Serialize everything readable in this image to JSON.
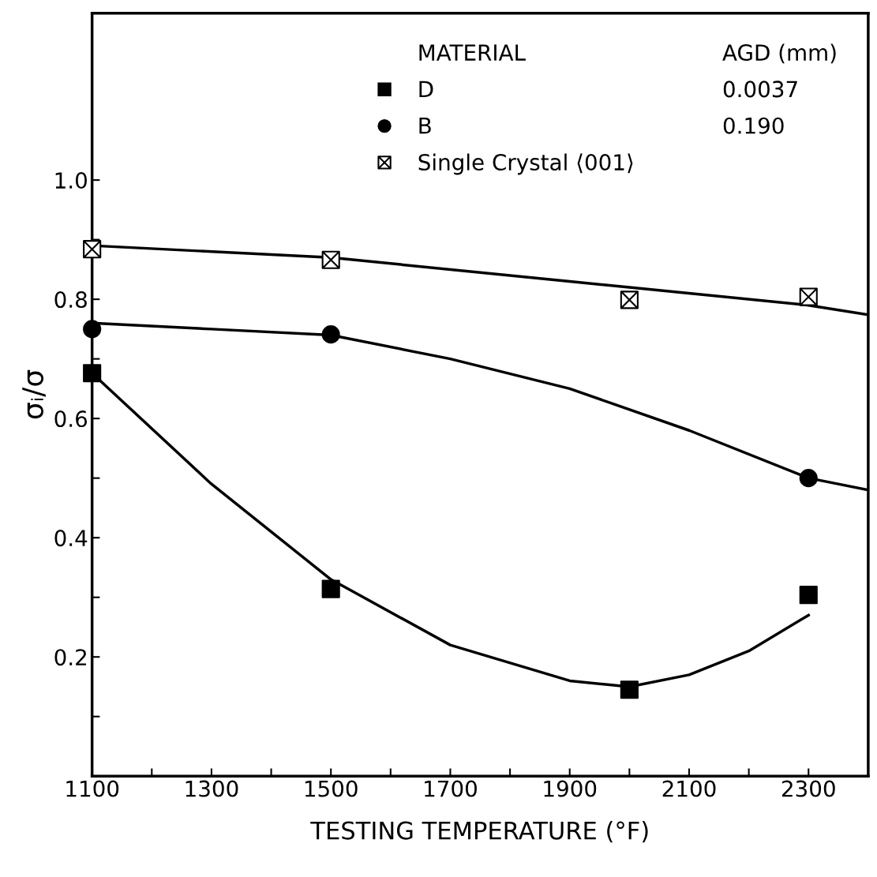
{
  "chart_data": {
    "type": "scatter",
    "xlabel": "TESTING TEMPERATURE (°F)",
    "ylabel": "σᵢ/σ",
    "legend_title": "MATERIAL",
    "annotations": [
      "AGD (mm)",
      "0.0037",
      "0.190"
    ],
    "xlim": [
      1100,
      2400
    ],
    "ylim": [
      0,
      1.28
    ],
    "xticks": [
      1100,
      {
        "value": 1200,
        "label": null
      },
      1300,
      {
        "value": 1400,
        "label": null
      },
      1500,
      {
        "value": 1600,
        "label": null
      },
      1700,
      {
        "value": 1800,
        "label": null
      },
      1900,
      {
        "value": 2000,
        "label": null
      },
      2100,
      {
        "value": 2200,
        "label": null
      },
      2300
    ],
    "yticks": [
      {
        "value": 0.1,
        "label": null
      },
      0.2,
      {
        "value": 0.3,
        "label": null
      },
      0.4,
      {
        "value": 0.5,
        "label": null
      },
      0.6,
      {
        "value": 0.7,
        "label": null
      },
      0.8,
      {
        "value": 0.9,
        "label": null
      },
      {
        "value": 1.0,
        "label": "1.0"
      }
    ],
    "grid": false,
    "legend": "top right",
    "series": [
      {
        "name": "D",
        "marker": "square",
        "color": "#000000",
        "x": [
          1100,
          1500,
          2000,
          2300
        ],
        "values": [
          0.676,
          0.314,
          0.145,
          0.304
        ]
      },
      {
        "name": "B",
        "marker": "circle",
        "color": "#000000",
        "x": [
          1100,
          1500,
          2300
        ],
        "values": [
          0.75,
          0.741,
          0.5
        ]
      },
      {
        "name": "Single Crystal ⟨001⟩",
        "marker": "cross",
        "color": "#000000",
        "x": [
          1100,
          1500,
          2000,
          2300
        ],
        "values": [
          0.884,
          0.866,
          0.799,
          0.804
        ]
      },
      {
        "type": "line",
        "line_style": "solid",
        "color": "#000000",
        "x": [
          1100,
          1300,
          1500,
          1700,
          1900,
          2000,
          2100,
          2200,
          2300
        ],
        "values": [
          0.676,
          0.49,
          0.33,
          0.22,
          0.16,
          0.15,
          0.17,
          0.21,
          0.27
        ]
      },
      {
        "type": "line",
        "line_style": "solid",
        "color": "#000000",
        "x": [
          1100,
          1300,
          1500,
          1700,
          1900,
          2100,
          2300,
          2400
        ],
        "values": [
          0.76,
          0.75,
          0.74,
          0.7,
          0.65,
          0.58,
          0.5,
          0.48
        ]
      },
      {
        "type": "line",
        "line_style": "solid",
        "color": "#000000",
        "x": [
          1100,
          1500,
          1900,
          2000,
          2300,
          2400
        ],
        "values": [
          0.89,
          0.87,
          0.83,
          0.82,
          0.79,
          0.774
        ]
      }
    ]
  }
}
